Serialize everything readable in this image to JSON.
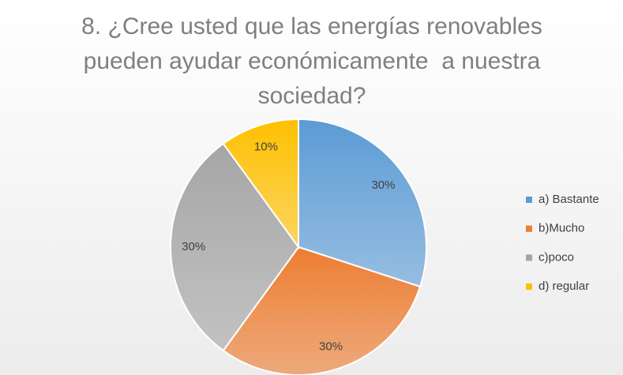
{
  "chart_data": {
    "type": "pie",
    "title": "8. ¿Cree usted que las energías renovables pueden ayudar económicamente  a nuestra sociedad?",
    "categories": [
      "a) Bastante",
      "b)Mucho",
      "c)poco",
      "d) regular"
    ],
    "values": [
      30,
      30,
      30,
      10
    ],
    "value_labels": [
      "30%",
      "30%",
      "30%",
      "10%"
    ],
    "colors": [
      "#5b9bd5",
      "#ed7d31",
      "#a5a5a5",
      "#ffc000"
    ],
    "legend": "right"
  }
}
